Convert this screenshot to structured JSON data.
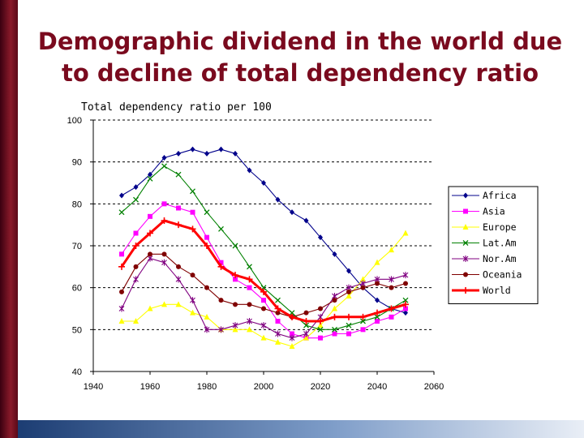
{
  "slide": {
    "title_line1": "Demographic dividend in the world due",
    "title_line2": "to decline of total dependency ratio"
  },
  "colors": {
    "title": "#7a0a1e",
    "grid": "#000000"
  },
  "chart_data": {
    "type": "line",
    "title": "Total dependency ratio per 100",
    "xlabel": "",
    "ylabel": "",
    "xlim": [
      1940,
      2060
    ],
    "ylim": [
      40,
      100
    ],
    "x_ticks": [
      1940,
      1960,
      1980,
      2000,
      2020,
      2040,
      2060
    ],
    "y_ticks": [
      40,
      50,
      60,
      70,
      80,
      90,
      100
    ],
    "grid": "horizontal dashed",
    "legend_position": "right",
    "x": [
      1950,
      1955,
      1960,
      1965,
      1970,
      1975,
      1980,
      1985,
      1990,
      1995,
      2000,
      2005,
      2010,
      2015,
      2020,
      2025,
      2030,
      2035,
      2040,
      2045,
      2050
    ],
    "series": [
      {
        "name": "Africa",
        "color": "#00008b",
        "marker": "diamond",
        "values": [
          82,
          84,
          87,
          91,
          92,
          93,
          92,
          93,
          92,
          88,
          85,
          81,
          78,
          76,
          72,
          68,
          64,
          60,
          57,
          55,
          54
        ]
      },
      {
        "name": "Asia",
        "color": "#ff00ff",
        "marker": "square",
        "values": [
          68,
          73,
          77,
          80,
          79,
          78,
          72,
          66,
          62,
          60,
          57,
          52,
          49,
          48,
          48,
          49,
          49,
          50,
          52,
          53,
          55
        ]
      },
      {
        "name": "Europe",
        "color": "#ffff00",
        "marker": "triangle",
        "values": [
          52,
          52,
          55,
          56,
          56,
          54,
          53,
          50,
          50,
          50,
          48,
          47,
          46,
          48,
          51,
          55,
          58,
          62,
          66,
          69,
          73
        ]
      },
      {
        "name": "Lat.Am",
        "color": "#008000",
        "marker": "x",
        "values": [
          78,
          81,
          86,
          89,
          87,
          83,
          78,
          74,
          70,
          65,
          60,
          57,
          54,
          51,
          50,
          50,
          51,
          52,
          53,
          55,
          57
        ]
      },
      {
        "name": "Nor.Am",
        "color": "#800080",
        "marker": "star",
        "values": [
          55,
          62,
          67,
          66,
          62,
          57,
          50,
          50,
          51,
          52,
          51,
          49,
          48,
          49,
          53,
          58,
          60,
          61,
          62,
          62,
          63
        ]
      },
      {
        "name": "Oceania",
        "color": "#800000",
        "marker": "circle",
        "values": [
          59,
          65,
          68,
          68,
          65,
          63,
          60,
          57,
          56,
          56,
          55,
          54,
          53,
          54,
          55,
          57,
          59,
          60,
          61,
          60,
          61
        ]
      },
      {
        "name": "World",
        "color": "#ff0000",
        "marker": "plus",
        "bold": true,
        "values": [
          65,
          70,
          73,
          76,
          75,
          74,
          70,
          65,
          63,
          62,
          59,
          55,
          53,
          52,
          52,
          53,
          53,
          53,
          54,
          55,
          56
        ]
      }
    ]
  }
}
